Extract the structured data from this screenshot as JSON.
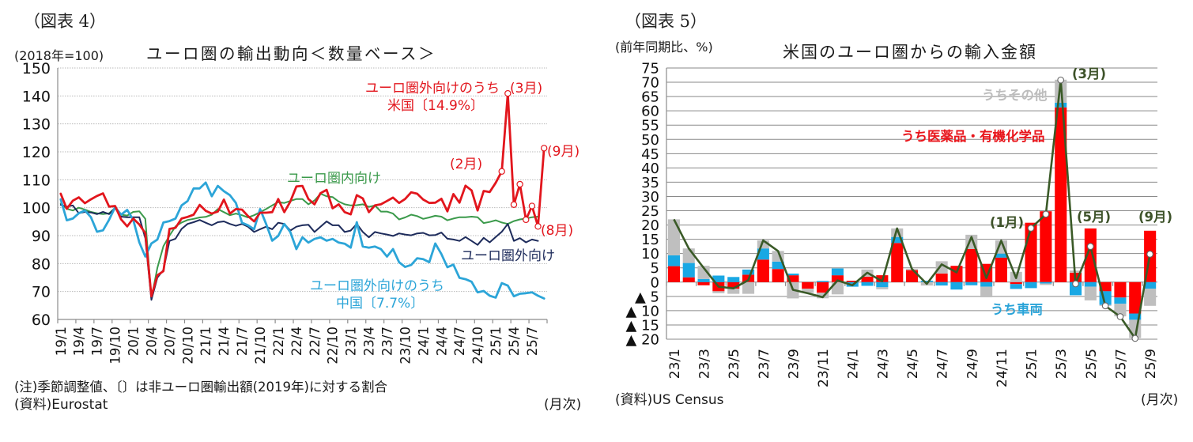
{
  "left_panel": {
    "figure_label": "（図表 4）",
    "note": "(注)季節調整値、〔〕は非ユーロ圏輸出額(2019年)に対する割合",
    "source": "(資料)Eurostat",
    "x_unit": "(月次)"
  },
  "right_panel": {
    "figure_label": "（図表 5）",
    "source": "(資料)US Census",
    "x_unit": "(月次)"
  },
  "chart_data": [
    {
      "type": "line",
      "title": "ユーロ圏の輸出動向＜数量ベース＞",
      "ylabel": "(2018年=100)",
      "xlabel": "(月次)",
      "ylim": [
        60,
        150
      ],
      "yticks": [
        150,
        140,
        130,
        120,
        110,
        100,
        90,
        80,
        70,
        60
      ],
      "grid": true,
      "legend": "inline-annotations",
      "x": [
        "19/1",
        "19/2",
        "19/3",
        "19/4",
        "19/5",
        "19/6",
        "19/7",
        "19/8",
        "19/9",
        "19/10",
        "19/11",
        "19/12",
        "20/1",
        "20/2",
        "20/3",
        "20/4",
        "20/5",
        "20/6",
        "20/7",
        "20/8",
        "20/9",
        "20/10",
        "20/11",
        "20/12",
        "21/1",
        "21/2",
        "21/3",
        "21/4",
        "21/5",
        "21/6",
        "21/7",
        "21/8",
        "21/9",
        "21/10",
        "21/11",
        "21/12",
        "22/1",
        "22/2",
        "22/3",
        "22/4",
        "22/5",
        "22/6",
        "22/7",
        "22/8",
        "22/9",
        "22/10",
        "22/11",
        "22/12",
        "23/1",
        "23/2",
        "23/3",
        "23/4",
        "23/5",
        "23/6",
        "23/7",
        "23/8",
        "23/9",
        "23/10",
        "23/11",
        "23/12",
        "24/1",
        "24/2",
        "24/3",
        "24/4",
        "24/5",
        "24/6",
        "24/7",
        "24/8",
        "24/9",
        "24/10",
        "24/11",
        "24/12",
        "25/1",
        "25/2",
        "25/3",
        "25/4",
        "25/5",
        "25/6",
        "25/7",
        "25/8",
        "25/9"
      ],
      "xtick_labels": [
        "19/1",
        "19/4",
        "19/7",
        "19/10",
        "20/1",
        "20/4",
        "20/7",
        "20/10",
        "21/1",
        "21/4",
        "21/7",
        "21/10",
        "22/1",
        "22/4",
        "22/7",
        "22/10",
        "23/1",
        "23/4",
        "23/7",
        "23/10",
        "24/1",
        "24/4",
        "24/7",
        "24/10",
        "25/1",
        "25/4",
        "25/7"
      ],
      "series": [
        {
          "id": "us",
          "name": "ユーロ圏外向けのうち米国〔14.9%〕",
          "color": "#e2161d",
          "values": [
            105.0,
            99.6,
            102.5,
            103.7,
            101.6,
            103.0,
            104.2,
            105.1,
            100.4,
            100.6,
            95.8,
            93.3,
            96.1,
            94.0,
            90.9,
            68.3,
            75.8,
            77.3,
            92.4,
            92.8,
            96.1,
            96.7,
            97.5,
            101.0,
            98.9,
            97.9,
            98.6,
            102.9,
            97.9,
            99.5,
            99.3,
            97.0,
            95.1,
            98.2,
            98.2,
            98.4,
            103.1,
            98.4,
            102.2,
            107.6,
            107.8,
            103.1,
            101.2,
            105.2,
            106.4,
            99.8,
            101.2,
            98.4,
            97.6,
            104.5,
            103.3,
            98.4,
            100.8,
            101.2,
            102.4,
            103.6,
            101.7,
            103.1,
            105.5,
            105.0,
            102.9,
            101.7,
            101.8,
            103.2,
            98.7,
            104.9,
            101.8,
            107.9,
            106.2,
            99.0,
            106.0,
            105.6,
            108.9,
            113.0,
            140.9,
            101.1,
            108.4,
            95.7,
            100.6,
            93.3,
            121.3
          ],
          "marked": [
            "25/2",
            "25/3",
            "25/4",
            "25/5",
            "25/6",
            "25/7",
            "25/8",
            "25/9"
          ]
        },
        {
          "id": "intra",
          "name": "ユーロ圏内向け",
          "color": "#3b9a4b",
          "values": [
            101.5,
            99.6,
            99.0,
            100.0,
            99.3,
            98.5,
            98.0,
            97.7,
            98.0,
            99.9,
            97.5,
            97.2,
            98.5,
            98.7,
            96.0,
            67.5,
            78.5,
            86.2,
            90.0,
            93.3,
            94.7,
            95.6,
            96.0,
            96.5,
            96.7,
            97.5,
            99.5,
            98.4,
            97.3,
            97.9,
            97.3,
            96.5,
            97.3,
            98.4,
            99.5,
            100.8,
            102.0,
            101.7,
            102.4,
            103.1,
            103.1,
            101.2,
            102.6,
            105.0,
            104.1,
            103.8,
            102.2,
            101.2,
            100.8,
            100.9,
            101.2,
            100.3,
            100.8,
            98.6,
            98.6,
            97.9,
            95.8,
            96.5,
            97.5,
            97.0,
            96.0,
            96.5,
            97.1,
            96.8,
            95.5,
            96.1,
            96.6,
            96.6,
            96.8,
            96.6,
            94.5,
            94.9,
            95.5,
            94.7,
            94.2,
            95.2,
            95.8,
            96.1,
            96.6,
            96.8,
            null
          ]
        },
        {
          "id": "extra",
          "name": "ユーロ圏外向け",
          "color": "#1d2b5b",
          "values": [
            101.0,
            100.4,
            100.8,
            98.0,
            98.5,
            98.3,
            97.7,
            98.5,
            97.7,
            99.9,
            96.8,
            96.6,
            96.6,
            96.6,
            89.1,
            67.0,
            75.0,
            77.7,
            88.1,
            88.9,
            92.4,
            94.2,
            94.8,
            95.6,
            94.6,
            93.7,
            94.8,
            95.1,
            94.2,
            93.5,
            94.2,
            93.2,
            91.3,
            92.3,
            93.2,
            92.3,
            94.6,
            94.2,
            91.8,
            93.2,
            93.7,
            93.9,
            91.3,
            93.2,
            95.1,
            93.7,
            93.7,
            91.3,
            91.8,
            94.2,
            91.3,
            89.4,
            91.3,
            90.8,
            90.4,
            89.9,
            90.8,
            90.4,
            90.1,
            90.8,
            91.0,
            90.1,
            90.2,
            91.1,
            88.9,
            88.6,
            88.1,
            89.5,
            88.1,
            86.7,
            89.2,
            87.6,
            89.5,
            91.4,
            94.2,
            88.1,
            89.1,
            87.6,
            88.6,
            88.1,
            null
          ]
        },
        {
          "id": "china",
          "name": "ユーロ圏外向けのうち中国〔7.7%〕",
          "color": "#2ca5d8",
          "values": [
            103.0,
            95.5,
            96.1,
            98.0,
            99.0,
            96.6,
            91.4,
            91.9,
            95.7,
            100.2,
            97.5,
            99.2,
            95.7,
            87.6,
            82.5,
            87.2,
            88.6,
            94.7,
            95.2,
            96.1,
            100.8,
            102.4,
            106.9,
            106.9,
            109.0,
            104.1,
            107.8,
            105.9,
            104.5,
            101.7,
            94.6,
            93.7,
            92.3,
            99.5,
            94.2,
            88.2,
            89.9,
            94.2,
            91.3,
            85.2,
            89.4,
            87.5,
            88.8,
            89.4,
            88.2,
            88.8,
            87.5,
            87.1,
            85.7,
            94.8,
            86.1,
            85.7,
            86.1,
            85.2,
            82.5,
            85.2,
            80.5,
            78.8,
            79.5,
            81.9,
            81.6,
            80.5,
            87.2,
            83.4,
            78.7,
            79.6,
            74.9,
            74.4,
            73.5,
            69.7,
            70.2,
            68.5,
            67.8,
            73.0,
            72.1,
            68.3,
            69.2,
            69.4,
            69.7,
            68.5,
            67.5
          ]
        }
      ],
      "annotations": {
        "us_line1": "ユーロ圏外向けのうち",
        "us_line2": "米国〔14.9%〕",
        "us_mar": "(3月)",
        "us_feb": "(2月)",
        "us_sep": "(9月)",
        "us_aug": "(8月)",
        "intra": "ユーロ圏内向け",
        "extra": "ユーロ圏外向け",
        "china_line1": "ユーロ圏外向けのうち",
        "china_line2": "中国〔7.7%〕"
      }
    },
    {
      "type": "bar",
      "stacked": true,
      "title": "米国のユーロ圏からの輸入金額",
      "ylabel": "(前年同期比、%)",
      "xlabel": "(月次)",
      "ylim": [
        -20,
        75
      ],
      "yticks": [
        75,
        70,
        65,
        60,
        55,
        50,
        45,
        40,
        35,
        30,
        25,
        20,
        15,
        10,
        5,
        0,
        -5,
        -10,
        -15,
        -20
      ],
      "ytick_labels": [
        "75",
        "70",
        "65",
        "60",
        "55",
        "50",
        "45",
        "40",
        "35",
        "30",
        "25",
        "20",
        "15",
        "10",
        "5",
        "0",
        "▲ 5",
        "▲ 10",
        "▲ 15",
        "▲ 20"
      ],
      "grid": true,
      "legend": "inline-annotations",
      "categories": [
        "23/1",
        "23/2",
        "23/3",
        "23/4",
        "23/5",
        "23/6",
        "23/7",
        "23/8",
        "23/9",
        "23/10",
        "23/11",
        "23/12",
        "24/1",
        "24/2",
        "24/3",
        "24/4",
        "24/5",
        "24/6",
        "24/7",
        "24/8",
        "24/9",
        "24/10",
        "24/11",
        "24/12",
        "25/1",
        "25/2",
        "25/3",
        "25/4",
        "25/5",
        "25/6",
        "25/7",
        "25/8",
        "25/9"
      ],
      "xtick_labels": [
        "23/1",
        "23/3",
        "23/5",
        "23/7",
        "23/9",
        "23/11",
        "24/1",
        "24/3",
        "24/5",
        "24/7",
        "24/9",
        "24/11",
        "25/1",
        "25/3",
        "25/5",
        "25/7",
        "25/9"
      ],
      "series": [
        {
          "id": "pharma",
          "type": "bar",
          "name": "うち医薬品・有機化学品",
          "color": "#ff0000",
          "values": [
            5.6,
            1.7,
            -1.1,
            -3.2,
            -2.3,
            2.6,
            7.9,
            4.6,
            2.4,
            -2.3,
            -3.7,
            2.4,
            0.5,
            1.9,
            2.4,
            13.7,
            4.2,
            0,
            3.0,
            5.7,
            11.6,
            6.4,
            8.6,
            -0.7,
            20.8,
            24.8,
            61.2,
            3.3,
            18.8,
            -3.2,
            -5.4,
            -11.0,
            18.0
          ]
        },
        {
          "id": "vehicles",
          "type": "bar",
          "name": "うち車両",
          "color": "#19a8e4",
          "values": [
            3.8,
            5.0,
            1.1,
            2.3,
            1.8,
            1.8,
            3.9,
            2.6,
            0.6,
            0,
            0.4,
            2.4,
            -1.6,
            -1.3,
            -1.8,
            2.1,
            0,
            0.5,
            -1.2,
            -2.6,
            -1.1,
            -1.6,
            1.4,
            -1.7,
            -2.1,
            -0.5,
            1.6,
            -4.6,
            -1.6,
            -4.8,
            -2.2,
            -2.2,
            -2.3
          ]
        },
        {
          "id": "other",
          "type": "bar",
          "name": "うちその他",
          "color": "#bfbfbf",
          "values": [
            12.6,
            5.1,
            4.6,
            -0.7,
            -1.8,
            -4.1,
            2.8,
            3.7,
            -5.7,
            -1.5,
            -2.0,
            -4.3,
            0,
            2.5,
            -0.7,
            3.0,
            0.4,
            -1.2,
            4.3,
            0,
            5.0,
            -3.7,
            4.6,
            3.6,
            0,
            -0.5,
            8.1,
            0.7,
            -4.8,
            -0.3,
            -4.4,
            -6.4,
            -6.0
          ]
        },
        {
          "id": "total",
          "type": "line",
          "color": "#3a5a27",
          "values": [
            22.0,
            11.8,
            5.0,
            -1.6,
            -2.2,
            0.7,
            14.6,
            10.9,
            -2.7,
            -3.9,
            -5.3,
            0.6,
            -1.1,
            3.3,
            0.3,
            18.8,
            4.6,
            -0.6,
            6.2,
            3.4,
            15.8,
            1.4,
            14.5,
            1.4,
            18.9,
            23.8,
            70.8,
            -0.6,
            12.5,
            -8.3,
            -12.1,
            -19.7,
            9.8
          ],
          "marked": [
            "25/1",
            "25/2",
            "25/3",
            "25/4",
            "25/5",
            "25/6",
            "25/7",
            "25/8",
            "25/9"
          ]
        }
      ],
      "annotations": {
        "other": "うちその他",
        "pharma": "うち医薬品・有機化学品",
        "vehicles": "うち車両",
        "mar": "(3月)",
        "jan": "(1月)",
        "may": "(5月)",
        "sep": "(9月)"
      }
    }
  ]
}
